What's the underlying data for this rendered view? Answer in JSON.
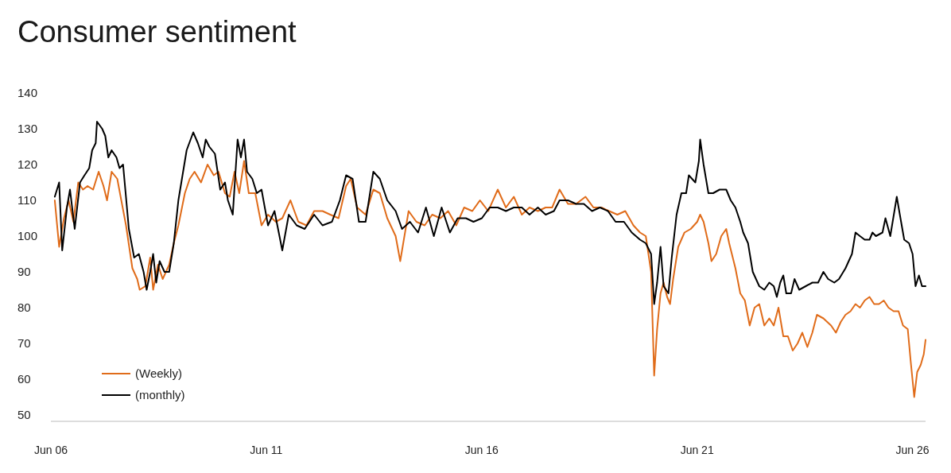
{
  "chart_data": {
    "type": "line",
    "title": "Consumer sentiment",
    "xlim": [
      "2006-06-01",
      "2026-09-20"
    ],
    "xticks": [
      {
        "value": "2006-06-01",
        "label": "Jun 06"
      },
      {
        "value": "2011-06-01",
        "label": "Jun 11"
      },
      {
        "value": "2016-06-01",
        "label": "Jun 16"
      },
      {
        "value": "2021-06-01",
        "label": "Jun 21"
      },
      {
        "value": "2026-06-01",
        "label": "Jun 26"
      }
    ],
    "ylim": [
      50,
      140
    ],
    "yticks": [
      50,
      60,
      70,
      80,
      90,
      100,
      110,
      120,
      130,
      140
    ],
    "grid": false,
    "legend": "bottom left",
    "line_style": "solid",
    "marker": "none",
    "series": [
      {
        "name": "(Weekly)",
        "color": "#e06c1a",
        "x": [
          "2006-07-04",
          "2006-08-10",
          "2006-09-20",
          "2006-10-29",
          "2006-12-09",
          "2007-01-19",
          "2007-02-28",
          "2007-04-08",
          "2007-05-25",
          "2007-07-11",
          "2007-08-21",
          "2007-09-20",
          "2007-10-29",
          "2007-12-16",
          "2008-01-19",
          "2008-02-28",
          "2008-04-22",
          "2008-06-02",
          "2008-06-23",
          "2008-08-10",
          "2008-09-20",
          "2008-10-15",
          "2008-11-25",
          "2009-01-04",
          "2009-02-28",
          "2009-04-08",
          "2009-05-17",
          "2009-07-11",
          "2009-08-21",
          "2009-10-01",
          "2009-11-25",
          "2010-01-19",
          "2010-03-13",
          "2010-04-22",
          "2010-06-16",
          "2010-07-26",
          "2010-09-05",
          "2010-10-15",
          "2010-11-25",
          "2011-01-04",
          "2011-02-28",
          "2011-04-22",
          "2011-06-16",
          "2011-08-21",
          "2011-10-15",
          "2011-12-23",
          "2012-02-28",
          "2012-05-07",
          "2012-07-11",
          "2012-09-20",
          "2012-11-25",
          "2013-02-03",
          "2013-04-08",
          "2013-05-17",
          "2013-07-11",
          "2013-09-20",
          "2013-11-25",
          "2014-01-19",
          "2014-03-23",
          "2014-06-02",
          "2014-07-11",
          "2014-09-20",
          "2014-11-25",
          "2015-02-03",
          "2015-04-08",
          "2015-06-16",
          "2015-08-21",
          "2015-10-29",
          "2016-01-04",
          "2016-03-13",
          "2016-05-17",
          "2016-07-26",
          "2016-10-15",
          "2016-12-23",
          "2017-02-28",
          "2017-05-07",
          "2017-07-11",
          "2017-09-20",
          "2017-11-25",
          "2018-01-19",
          "2018-03-23",
          "2018-06-02",
          "2018-08-10",
          "2018-10-29",
          "2019-01-04",
          "2019-03-13",
          "2019-05-17",
          "2019-07-26",
          "2019-10-01",
          "2019-12-09",
          "2020-02-03",
          "2020-03-23",
          "2020-05-07",
          "2020-06-02",
          "2020-06-27",
          "2020-07-26",
          "2020-08-21",
          "2020-09-20",
          "2020-10-15",
          "2020-11-10",
          "2020-12-23",
          "2021-02-14",
          "2021-04-08",
          "2021-06-02",
          "2021-06-27",
          "2021-07-26",
          "2021-09-05",
          "2021-10-01",
          "2021-11-10",
          "2021-12-23",
          "2022-02-03",
          "2022-02-28",
          "2022-04-22",
          "2022-06-02",
          "2022-07-11",
          "2022-08-21",
          "2022-10-01",
          "2022-11-10",
          "2022-12-23",
          "2023-02-03",
          "2023-03-13",
          "2023-04-22",
          "2023-06-02",
          "2023-07-11",
          "2023-08-21",
          "2023-10-01",
          "2023-11-10",
          "2023-12-23",
          "2024-02-03",
          "2024-03-13",
          "2024-05-07",
          "2024-07-11",
          "2024-08-21",
          "2024-10-01",
          "2024-11-10",
          "2024-12-23",
          "2025-02-03",
          "2025-03-13",
          "2025-04-22",
          "2025-06-02",
          "2025-07-11",
          "2025-08-21",
          "2025-10-01",
          "2025-11-10",
          "2025-12-23",
          "2026-02-03",
          "2026-03-13",
          "2026-04-22",
          "2026-05-17",
          "2026-06-16",
          "2026-07-11",
          "2026-08-10",
          "2026-09-05",
          "2026-09-20"
        ],
        "values": [
          110,
          97,
          105,
          110,
          104,
          115,
          113,
          114,
          113,
          118,
          114,
          110,
          118,
          116,
          110,
          103,
          91,
          88,
          85,
          86,
          94,
          85,
          92,
          88,
          92,
          98,
          103,
          112,
          116,
          118,
          115,
          120,
          117,
          118,
          112,
          111,
          118,
          112,
          121,
          112,
          112,
          103,
          106,
          104,
          105,
          110,
          104,
          103,
          107,
          107,
          106,
          105,
          114,
          116,
          108,
          106,
          113,
          112,
          105,
          100,
          93,
          107,
          104,
          103,
          106,
          105,
          107,
          103,
          108,
          107,
          110,
          107,
          113,
          108,
          111,
          106,
          108,
          107,
          108,
          108,
          113,
          109,
          109,
          111,
          108,
          108,
          107,
          106,
          107,
          103,
          101,
          100,
          90,
          61,
          74,
          84,
          87,
          83,
          81,
          88,
          97,
          101,
          102,
          104,
          106,
          104,
          98,
          93,
          95,
          100,
          102,
          98,
          91,
          84,
          82,
          75,
          80,
          81,
          75,
          77,
          75,
          80,
          72,
          72,
          68,
          70,
          73,
          69,
          73,
          78,
          77,
          75,
          73,
          76,
          78,
          79,
          81,
          80,
          82,
          83,
          81,
          81,
          82,
          80,
          79,
          79,
          75,
          74,
          65,
          55,
          62,
          64,
          67,
          71
        ]
      },
      {
        "name": "(monthly)",
        "color": "#000000",
        "x": [
          "2006-07-04",
          "2006-08-10",
          "2006-09-05",
          "2006-10-15",
          "2006-11-10",
          "2006-12-20",
          "2007-02-03",
          "2007-03-13",
          "2007-04-22",
          "2007-05-17",
          "2007-06-16",
          "2007-06-27",
          "2007-08-10",
          "2007-09-05",
          "2007-10-01",
          "2007-10-29",
          "2007-12-09",
          "2008-01-04",
          "2008-02-03",
          "2008-03-23",
          "2008-05-07",
          "2008-06-16",
          "2008-07-26",
          "2008-08-21",
          "2008-09-20",
          "2008-10-15",
          "2008-11-10",
          "2008-12-09",
          "2009-01-19",
          "2009-02-28",
          "2009-04-08",
          "2009-05-17",
          "2009-07-26",
          "2009-09-20",
          "2009-10-29",
          "2009-12-09",
          "2010-01-04",
          "2010-02-03",
          "2010-03-23",
          "2010-05-07",
          "2010-06-16",
          "2010-07-11",
          "2010-08-21",
          "2010-10-01",
          "2010-10-29",
          "2010-11-25",
          "2010-12-20",
          "2011-02-03",
          "2011-03-13",
          "2011-04-22",
          "2011-06-16",
          "2011-08-10",
          "2011-10-15",
          "2011-12-09",
          "2012-02-14",
          "2012-04-22",
          "2012-07-11",
          "2012-09-20",
          "2012-12-09",
          "2013-02-14",
          "2013-04-08",
          "2013-06-02",
          "2013-07-26",
          "2013-09-20",
          "2013-11-25",
          "2014-01-19",
          "2014-03-23",
          "2014-06-02",
          "2014-07-26",
          "2014-10-01",
          "2014-12-09",
          "2015-02-14",
          "2015-04-22",
          "2015-06-27",
          "2015-09-05",
          "2015-11-10",
          "2016-01-19",
          "2016-03-23",
          "2016-06-02",
          "2016-08-07",
          "2016-10-15",
          "2016-12-23",
          "2017-02-28",
          "2017-05-07",
          "2017-07-11",
          "2017-09-20",
          "2017-11-25",
          "2018-02-03",
          "2018-03-23",
          "2018-06-02",
          "2018-08-10",
          "2018-10-15",
          "2018-12-23",
          "2019-02-28",
          "2019-05-07",
          "2019-07-11",
          "2019-09-20",
          "2019-11-25",
          "2020-02-03",
          "2020-03-23",
          "2020-05-07",
          "2020-06-02",
          "2020-06-27",
          "2020-07-26",
          "2020-08-21",
          "2020-10-01",
          "2020-10-29",
          "2020-12-09",
          "2021-01-19",
          "2021-02-28",
          "2021-03-23",
          "2021-05-17",
          "2021-06-16",
          "2021-06-27",
          "2021-07-26",
          "2021-09-05",
          "2021-10-15",
          "2021-12-09",
          "2022-02-03",
          "2022-03-13",
          "2022-04-22",
          "2022-06-02",
          "2022-06-27",
          "2022-08-07",
          "2022-09-16",
          "2022-11-10",
          "2022-12-23",
          "2023-02-03",
          "2023-03-13",
          "2023-04-08",
          "2023-05-07",
          "2023-06-02",
          "2023-06-27",
          "2023-08-07",
          "2023-09-05",
          "2023-10-15",
          "2023-12-09",
          "2024-02-03",
          "2024-03-23",
          "2024-05-07",
          "2024-06-16",
          "2024-08-07",
          "2024-09-16",
          "2024-11-10",
          "2025-01-04",
          "2025-02-03",
          "2025-03-13",
          "2025-04-22",
          "2025-06-02",
          "2025-06-27",
          "2025-07-26",
          "2025-09-20",
          "2025-10-15",
          "2025-11-25",
          "2026-01-19",
          "2026-02-14",
          "2026-03-23",
          "2026-05-03",
          "2026-06-02",
          "2026-06-27",
          "2026-07-26",
          "2026-08-21",
          "2026-09-20"
        ],
        "values": [
          111,
          115,
          96,
          108,
          113,
          102,
          115,
          117,
          119,
          124,
          126,
          132,
          130,
          128,
          122,
          124,
          122,
          119,
          120,
          102,
          94,
          95,
          90,
          85,
          90,
          95,
          87,
          93,
          90,
          90,
          98,
          110,
          124,
          129,
          126,
          122,
          127,
          125,
          123,
          113,
          115,
          110,
          106,
          127,
          122,
          127,
          118,
          116,
          112,
          113,
          103,
          107,
          96,
          106,
          103,
          102,
          106,
          103,
          104,
          110,
          117,
          116,
          104,
          104,
          118,
          116,
          110,
          107,
          102,
          104,
          101,
          108,
          100,
          108,
          101,
          105,
          105,
          104,
          105,
          108,
          108,
          107,
          108,
          108,
          106,
          108,
          106,
          107,
          110,
          110,
          109,
          109,
          107,
          108,
          107,
          104,
          104,
          101,
          99,
          98,
          95,
          81,
          87,
          97,
          86,
          84,
          94,
          106,
          112,
          112,
          117,
          115,
          121,
          127,
          120,
          112,
          112,
          113,
          113,
          110,
          108,
          104,
          101,
          98,
          90,
          86,
          85,
          87,
          86,
          83,
          87,
          89,
          84,
          84,
          88,
          85,
          86,
          87,
          87,
          90,
          88,
          87,
          88,
          91,
          95,
          101,
          100,
          99,
          99,
          101,
          100,
          101,
          105,
          100,
          111,
          106,
          99,
          98,
          95,
          86,
          89,
          86,
          86
        ]
      }
    ]
  }
}
